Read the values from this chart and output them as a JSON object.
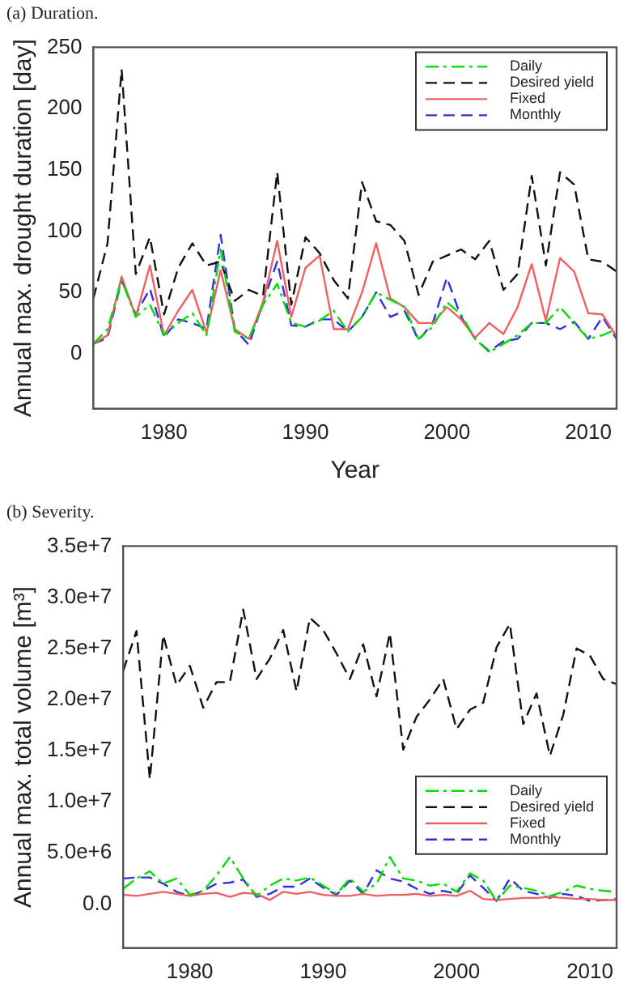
{
  "chart_data": [
    {
      "type": "line",
      "title": "(a) Duration.",
      "xlabel": "Year",
      "ylabel": "Annual max. drought duration [day]",
      "x": [
        1975,
        1976,
        1977,
        1978,
        1979,
        1980,
        1981,
        1982,
        1983,
        1984,
        1985,
        1986,
        1987,
        1988,
        1989,
        1990,
        1991,
        1992,
        1993,
        1994,
        1995,
        1996,
        1997,
        1998,
        1999,
        2000,
        2001,
        2002,
        2003,
        2004,
        2005,
        2006,
        2007,
        2008,
        2009,
        2010,
        2011,
        2012
      ],
      "xlim": [
        1975,
        2012
      ],
      "xticks": [
        1980,
        1990,
        2000,
        2010
      ],
      "ylim": [
        -45,
        250
      ],
      "yticks": [
        0,
        50,
        100,
        150,
        200,
        250
      ],
      "legend": "top right",
      "series": [
        {
          "name": "Daily",
          "color": "#00dd00",
          "line_style": "dashdot",
          "values": [
            8,
            20,
            60,
            30,
            40,
            15,
            25,
            33,
            15,
            85,
            18,
            12,
            40,
            57,
            25,
            22,
            27,
            35,
            18,
            30,
            50,
            44,
            38,
            12,
            22,
            42,
            32,
            12,
            1,
            8,
            15,
            25,
            25,
            38,
            25,
            12,
            15,
            20
          ]
        },
        {
          "name": "Desired yield",
          "color": "#111111",
          "line_style": "dashed",
          "values": [
            45,
            90,
            232,
            65,
            95,
            32,
            70,
            90,
            72,
            75,
            43,
            52,
            47,
            148,
            40,
            95,
            82,
            60,
            45,
            140,
            108,
            105,
            92,
            48,
            75,
            80,
            85,
            77,
            92,
            52,
            65,
            145,
            72,
            148,
            138,
            77,
            75,
            67
          ]
        },
        {
          "name": "Fixed",
          "color": "#f06060",
          "line_style": "solid",
          "values": [
            8,
            15,
            63,
            30,
            72,
            15,
            35,
            52,
            17,
            68,
            20,
            12,
            42,
            92,
            30,
            70,
            80,
            20,
            20,
            50,
            90,
            45,
            38,
            25,
            25,
            38,
            28,
            13,
            25,
            16,
            38,
            73,
            27,
            78,
            67,
            33,
            32,
            14
          ]
        },
        {
          "name": "Monthly",
          "color": "#3030e0",
          "line_style": "dashed",
          "values": [
            8,
            13,
            60,
            32,
            53,
            13,
            28,
            25,
            20,
            97,
            20,
            7,
            42,
            75,
            23,
            22,
            28,
            28,
            18,
            30,
            50,
            30,
            35,
            11,
            25,
            62,
            30,
            12,
            2,
            10,
            12,
            25,
            25,
            20,
            26,
            12,
            30,
            12
          ]
        }
      ]
    },
    {
      "type": "line",
      "title": "(b) Severity.",
      "ylabel": "Annual max. total volume [m³]",
      "x": [
        1975,
        1976,
        1977,
        1978,
        1979,
        1980,
        1981,
        1982,
        1983,
        1984,
        1985,
        1986,
        1987,
        1988,
        1989,
        1990,
        1991,
        1992,
        1993,
        1994,
        1995,
        1996,
        1997,
        1998,
        1999,
        2000,
        2001,
        2002,
        2003,
        2004,
        2005,
        2006,
        2007,
        2008,
        2009,
        2010,
        2011,
        2012
      ],
      "xlim": [
        1975,
        2012
      ],
      "xticks": [
        1980,
        1990,
        2000,
        2010
      ],
      "ylim": [
        -4300000,
        35000000
      ],
      "yticks": [
        {
          "value": 0,
          "label": "0.0"
        },
        {
          "value": 5000000,
          "label": "5.0e+6"
        },
        {
          "value": 10000000,
          "label": "1.0e+7"
        },
        {
          "value": 15000000,
          "label": "1.5e+7"
        },
        {
          "value": 20000000,
          "label": "2.0e+7"
        },
        {
          "value": 25000000,
          "label": "2.5e+7"
        },
        {
          "value": 30000000,
          "label": "3.0e+7"
        },
        {
          "value": 35000000,
          "label": "3.5e+7"
        }
      ],
      "legend": "bottom right",
      "series": [
        {
          "name": "Daily",
          "color": "#00dd00",
          "line_style": "dashdot",
          "values": [
            1500000,
            2500000,
            3200000,
            2000000,
            2500000,
            900000,
            1300000,
            2800000,
            4600000,
            2500000,
            800000,
            1800000,
            2500000,
            2300000,
            2600000,
            1800000,
            1000000,
            2500000,
            1200000,
            2000000,
            4600000,
            2500000,
            2300000,
            1800000,
            2000000,
            1200000,
            3000000,
            2300000,
            300000,
            1800000,
            1600000,
            1300000,
            800000,
            1200000,
            1800000,
            1500000,
            1300000,
            1200000
          ]
        },
        {
          "name": "Desired yield",
          "color": "#111111",
          "line_style": "dashed",
          "values": [
            22800000,
            26700000,
            12200000,
            26300000,
            21400000,
            23300000,
            19200000,
            21700000,
            21700000,
            28800000,
            22000000,
            24000000,
            26800000,
            20800000,
            28000000,
            26800000,
            24500000,
            22000000,
            25400000,
            20300000,
            26500000,
            15100000,
            18300000,
            20000000,
            22000000,
            17100000,
            19000000,
            19700000,
            25100000,
            27400000,
            17600000,
            20600000,
            14500000,
            18500000,
            25000000,
            24300000,
            22000000,
            21500000
          ]
        },
        {
          "name": "Fixed",
          "color": "#f06060",
          "line_style": "solid",
          "values": [
            900000,
            800000,
            1000000,
            1200000,
            1000000,
            800000,
            1000000,
            1100000,
            700000,
            1100000,
            1000000,
            400000,
            1200000,
            1000000,
            1200000,
            900000,
            800000,
            800000,
            1000000,
            800000,
            900000,
            900000,
            1000000,
            800000,
            900000,
            800000,
            1300000,
            500000,
            400000,
            500000,
            600000,
            600000,
            700000,
            600000,
            500000,
            500000,
            400000,
            400000
          ]
        },
        {
          "name": "Monthly",
          "color": "#3030e0",
          "line_style": "dashed",
          "values": [
            2500000,
            2600000,
            2600000,
            2000000,
            1200000,
            800000,
            1300000,
            2000000,
            2100000,
            2400000,
            700000,
            1000000,
            1700000,
            1700000,
            2500000,
            1600000,
            900000,
            2300000,
            1000000,
            3300000,
            2500000,
            2200000,
            1500000,
            1000000,
            1300000,
            1000000,
            2800000,
            1600000,
            300000,
            2500000,
            1300000,
            1000000,
            600000,
            1000000,
            800000,
            300000,
            400000,
            500000
          ]
        }
      ]
    }
  ]
}
